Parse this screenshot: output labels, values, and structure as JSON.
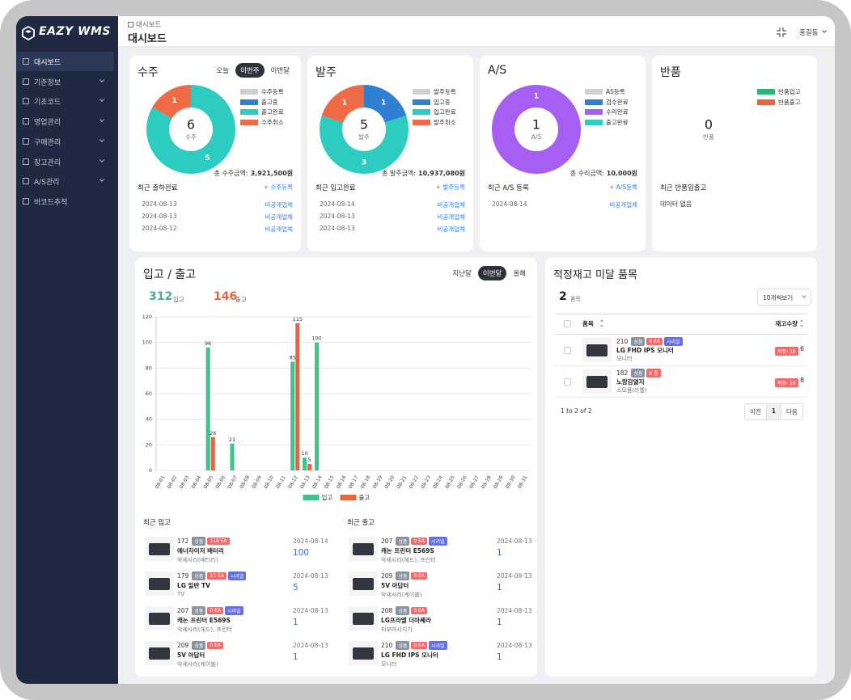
{
  "sidebar": {
    "logo": "EAZY WMS",
    "active": 0,
    "menu": [
      {
        "label": "대시보드",
        "sub": false
      },
      {
        "label": "기준정보",
        "sub": true
      },
      {
        "label": "기초코드",
        "sub": true
      },
      {
        "label": "영업관리",
        "sub": true
      },
      {
        "label": "구매관리",
        "sub": true
      },
      {
        "label": "창고관리",
        "sub": true
      },
      {
        "label": "A/S관리",
        "sub": true
      },
      {
        "label": "바코드추적",
        "sub": false
      }
    ]
  },
  "header": {
    "breadcrumb": "대시보드",
    "title": "대시보드",
    "user": "홍길동"
  },
  "summary": [
    {
      "title": "수주",
      "tabs": [
        "오늘",
        "이번주",
        "이번달"
      ],
      "active_tab": 1,
      "chart": {
        "type": "pie",
        "total": 6,
        "center_label": "수주",
        "series": [
          {
            "name": "수주등록",
            "color": "#cfcfcf",
            "value": 0
          },
          {
            "name": "출고중",
            "color": "#2f80d2",
            "value": 0
          },
          {
            "name": "출고완료",
            "color": "#2ecbc1",
            "value": 5
          },
          {
            "name": "수주취소",
            "color": "#ef6b47",
            "value": 1
          }
        ]
      },
      "amount_label": "총 수주금액:",
      "amount": "3,921,500원",
      "recent_title": "최근 출하완료",
      "action": "+ 수주등록",
      "recent": [
        {
          "date": "2024-08-13",
          "company": "비공개업체"
        },
        {
          "date": "2024-08-13",
          "company": "비공개업체"
        },
        {
          "date": "2024-08-12",
          "company": "비공개업체"
        }
      ]
    },
    {
      "title": "발주",
      "chart": {
        "type": "pie",
        "total": 5,
        "center_label": "발주",
        "series": [
          {
            "name": "발주등록",
            "color": "#cfcfcf",
            "value": 0
          },
          {
            "name": "입고중",
            "color": "#2f80d2",
            "value": 1
          },
          {
            "name": "입고완료",
            "color": "#2ecbc1",
            "value": 3
          },
          {
            "name": "발주취소",
            "color": "#ef6b47",
            "value": 1
          }
        ]
      },
      "amount_label": "총 발주금액:",
      "amount": "10,937,080원",
      "recent_title": "최근 입고완료",
      "action": "+ 발주등록",
      "recent": [
        {
          "date": "2024-08-14",
          "company": "비공개업체"
        },
        {
          "date": "2024-08-13",
          "company": "비공개업체"
        },
        {
          "date": "2024-08-13",
          "company": "비공개업체"
        }
      ]
    },
    {
      "title": "A/S",
      "chart": {
        "type": "pie",
        "total": 1,
        "center_label": "A/S",
        "series": [
          {
            "name": "AS등록",
            "color": "#cfcfcf",
            "value": 0
          },
          {
            "name": "검수완료",
            "color": "#2f80d2",
            "value": 0
          },
          {
            "name": "수리완료",
            "color": "#a65ff2",
            "value": 1
          },
          {
            "name": "출고완료",
            "color": "#2ecbc1",
            "value": 0
          }
        ]
      },
      "amount_label": "총 수리금액:",
      "amount": "10,000원",
      "recent_title": "최근 A/S 등록",
      "action": "+ A/S등록",
      "recent": [
        {
          "date": "2024-08-14",
          "company": "비공개업체"
        }
      ]
    },
    {
      "title": "반품",
      "chart": {
        "type": "pie",
        "total": 0,
        "center_label": "반품",
        "series": [
          {
            "name": "반품입고",
            "color": "#2bb673",
            "value": 0
          },
          {
            "name": "반품출고",
            "color": "#e8643c",
            "value": 0
          }
        ]
      },
      "recent_title": "최근 반품입출고",
      "empty": "데이터 없음"
    }
  ],
  "inout": {
    "title": "입고 / 출고",
    "tabs": [
      "지난달",
      "이번달",
      "올해"
    ],
    "active_tab": 1,
    "in_total": 312,
    "in_label": "입고",
    "out_total": 146,
    "out_label": "출고",
    "chart": {
      "type": "bar",
      "categories": [
        "08-01",
        "08-02",
        "08-03",
        "08-04",
        "08-05",
        "08-06",
        "08-07",
        "08-08",
        "08-09",
        "08-10",
        "08-11",
        "08-12",
        "08-13",
        "08-14",
        "08-15",
        "08-16",
        "08-17",
        "08-18",
        "08-19",
        "08-20",
        "08-21",
        "08-22",
        "08-23",
        "08-24",
        "08-25",
        "08-26",
        "08-27",
        "08-28",
        "08-29",
        "08-30",
        "08-31"
      ],
      "series": [
        {
          "name": "입고",
          "color": "#3cc48a",
          "values": [
            0,
            0,
            0,
            0,
            96,
            0,
            21,
            0,
            0,
            0,
            0,
            85,
            10,
            100,
            0,
            0,
            0,
            0,
            0,
            0,
            0,
            0,
            0,
            0,
            0,
            0,
            0,
            0,
            0,
            0,
            0
          ]
        },
        {
          "name": "출고",
          "color": "#e8643c",
          "values": [
            0,
            0,
            0,
            0,
            26,
            0,
            0,
            0,
            0,
            0,
            0,
            115,
            5,
            0,
            0,
            0,
            0,
            0,
            0,
            0,
            0,
            0,
            0,
            0,
            0,
            0,
            0,
            0,
            0,
            0,
            0
          ]
        }
      ],
      "ylim": [
        0,
        120
      ],
      "yticks": [
        0,
        20,
        40,
        60,
        80,
        100,
        120
      ],
      "grid": true
    },
    "lists": [
      {
        "title": "최근 입고",
        "items": [
          {
            "id": "172",
            "tags": [
              {
                "text": "상품",
                "color": "#8a93a3"
              },
              {
                "text": "118 EA",
                "color": "#f26a6a"
              }
            ],
            "name": "에너자이저 배터리",
            "category": "악세사리(배터리)",
            "date": "2024-08-14",
            "count": 100
          },
          {
            "id": "179",
            "tags": [
              {
                "text": "상품",
                "color": "#8a93a3"
              },
              {
                "text": "11 EA",
                "color": "#f26a6a"
              },
              {
                "text": "시리얼",
                "color": "#6470e6"
              }
            ],
            "name": "LG 일반 TV",
            "category": "TV",
            "date": "2024-08-13",
            "count": 5
          },
          {
            "id": "207",
            "tags": [
              {
                "text": "상품",
                "color": "#8a93a3"
              },
              {
                "text": "0 EA",
                "color": "#f26a6a"
              },
              {
                "text": "시리얼",
                "color": "#6470e6"
              }
            ],
            "name": "캐논 프린터 E569S",
            "category": "악세사리(헤드), 프린터",
            "date": "2024-08-13",
            "count": 1
          },
          {
            "id": "209",
            "tags": [
              {
                "text": "상품",
                "color": "#8a93a3"
              },
              {
                "text": "0 EA",
                "color": "#f26a6a"
              }
            ],
            "name": "5V 아답터",
            "category": "악세사리(케이블)",
            "date": "2024-08-13",
            "count": 1
          }
        ]
      },
      {
        "title": "최근 출고",
        "items": [
          {
            "id": "207",
            "tags": [
              {
                "text": "상품",
                "color": "#8a93a3"
              },
              {
                "text": "0 EA",
                "color": "#f26a6a"
              },
              {
                "text": "시리얼",
                "color": "#6470e6"
              }
            ],
            "name": "캐논 프린터 E569S",
            "category": "악세사리(헤드), 프린터",
            "date": "2024-08-13",
            "count": 1
          },
          {
            "id": "209",
            "tags": [
              {
                "text": "상품",
                "color": "#8a93a3"
              },
              {
                "text": "0 EA",
                "color": "#f26a6a"
              }
            ],
            "name": "5V 아답터",
            "category": "악세사리(케이블)",
            "date": "2024-08-13",
            "count": 1
          },
          {
            "id": "208",
            "tags": [
              {
                "text": "상품",
                "color": "#8a93a3"
              },
              {
                "text": "0 EA",
                "color": "#f26a6a"
              }
            ],
            "name": "LG프라엘 더마쎄라",
            "category": "피부마사지기",
            "date": "2024-08-13",
            "count": 1
          },
          {
            "id": "210",
            "tags": [
              {
                "text": "상품",
                "color": "#8a93a3"
              },
              {
                "text": "0 EA",
                "color": "#f26a6a"
              },
              {
                "text": "시리얼",
                "color": "#6470e6"
              }
            ],
            "name": "LG FHD IPS 모니터",
            "category": "모니터",
            "date": "2024-08-13",
            "count": 1
          }
        ]
      }
    ]
  },
  "stock": {
    "title": "적정재고 미달 품목",
    "count": 2,
    "count_label": "품목",
    "page_size": "10개씩보기",
    "columns": [
      "품목",
      "재고수량"
    ],
    "rows": [
      {
        "id": "210",
        "tags": [
          {
            "text": "상품",
            "color": "#8a93a3"
          },
          {
            "text": "6 EA",
            "color": "#f26a6a"
          },
          {
            "text": "시리얼",
            "color": "#6470e6"
          }
        ],
        "name": "LG FHD IPS 모니터",
        "category": "모니터",
        "min_label": "적정: 10",
        "qty": 6
      },
      {
        "id": "182",
        "tags": [
          {
            "text": "상품",
            "color": "#8a93a3"
          },
          {
            "text": "8 통",
            "color": "#f26a6a"
          }
        ],
        "name": "노랑감열지",
        "category": "소모품(라벨)",
        "min_label": "적정: 10",
        "qty": 8
      }
    ],
    "footer": "1 to 2 of 2",
    "pager": [
      "이전",
      "1",
      "다음"
    ]
  }
}
